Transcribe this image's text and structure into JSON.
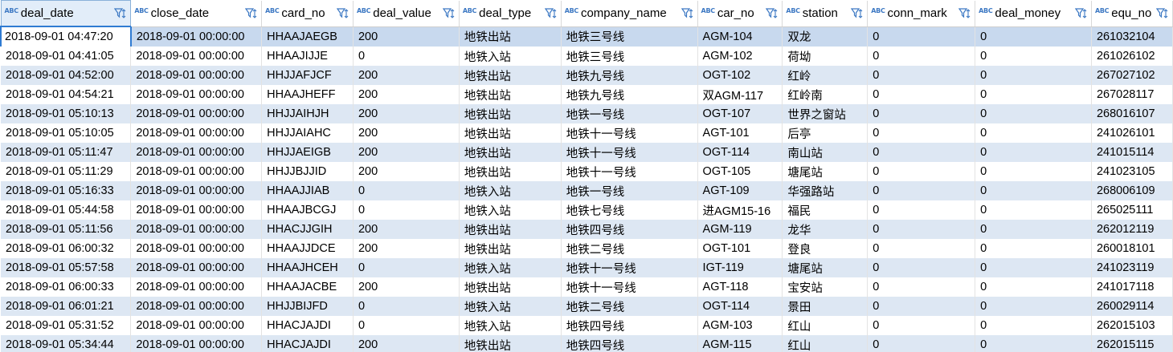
{
  "columns": [
    "deal_date",
    "close_date",
    "card_no",
    "deal_value",
    "deal_type",
    "company_name",
    "car_no",
    "station",
    "conn_mark",
    "deal_money",
    "equ_no"
  ],
  "type_badge": "ABC",
  "rows": [
    [
      "2018-09-01 04:47:20",
      "2018-09-01 00:00:00",
      "HHAAJAEGB",
      "200",
      "地铁出站",
      "地铁三号线",
      "AGM-104",
      "双龙",
      "0",
      "0",
      "261032104"
    ],
    [
      "2018-09-01 04:41:05",
      "2018-09-01 00:00:00",
      "HHAAJIJJE",
      "0",
      "地铁入站",
      "地铁三号线",
      "AGM-102",
      "荷坳",
      "0",
      "0",
      "261026102"
    ],
    [
      "2018-09-01 04:52:00",
      "2018-09-01 00:00:00",
      "HHJJAFJCF",
      "200",
      "地铁出站",
      "地铁九号线",
      "OGT-102",
      "红岭",
      "0",
      "0",
      "267027102"
    ],
    [
      "2018-09-01 04:54:21",
      "2018-09-01 00:00:00",
      "HHAAJHEFF",
      "200",
      "地铁出站",
      "地铁九号线",
      "双AGM-117",
      "红岭南",
      "0",
      "0",
      "267028117"
    ],
    [
      "2018-09-01 05:10:13",
      "2018-09-01 00:00:00",
      "HHJJAIHJH",
      "200",
      "地铁出站",
      "地铁一号线",
      "OGT-107",
      "世界之窗站",
      "0",
      "0",
      "268016107"
    ],
    [
      "2018-09-01 05:10:05",
      "2018-09-01 00:00:00",
      "HHJJAIAHC",
      "200",
      "地铁出站",
      "地铁十一号线",
      "AGT-101",
      "后亭",
      "0",
      "0",
      "241026101"
    ],
    [
      "2018-09-01 05:11:47",
      "2018-09-01 00:00:00",
      "HHJJAEIGB",
      "200",
      "地铁出站",
      "地铁十一号线",
      "OGT-114",
      "南山站",
      "0",
      "0",
      "241015114"
    ],
    [
      "2018-09-01 05:11:29",
      "2018-09-01 00:00:00",
      "HHJJBJJID",
      "200",
      "地铁出站",
      "地铁十一号线",
      "OGT-105",
      "塘尾站",
      "0",
      "0",
      "241023105"
    ],
    [
      "2018-09-01 05:16:33",
      "2018-09-01 00:00:00",
      "HHAAJJIAB",
      "0",
      "地铁入站",
      "地铁一号线",
      "AGT-109",
      "华强路站",
      "0",
      "0",
      "268006109"
    ],
    [
      "2018-09-01 05:44:58",
      "2018-09-01 00:00:00",
      "HHAAJBCGJ",
      "0",
      "地铁入站",
      "地铁七号线",
      "进AGM15-16",
      "福民",
      "0",
      "0",
      "265025111"
    ],
    [
      "2018-09-01 05:11:56",
      "2018-09-01 00:00:00",
      "HHACJJGIH",
      "200",
      "地铁出站",
      "地铁四号线",
      "AGM-119",
      "龙华",
      "0",
      "0",
      "262012119"
    ],
    [
      "2018-09-01 06:00:32",
      "2018-09-01 00:00:00",
      "HHAAJJDCE",
      "200",
      "地铁出站",
      "地铁二号线",
      "OGT-101",
      "登良",
      "0",
      "0",
      "260018101"
    ],
    [
      "2018-09-01 05:57:58",
      "2018-09-01 00:00:00",
      "HHAAJHCEH",
      "0",
      "地铁入站",
      "地铁十一号线",
      "IGT-119",
      "塘尾站",
      "0",
      "0",
      "241023119"
    ],
    [
      "2018-09-01 06:00:33",
      "2018-09-01 00:00:00",
      "HHAAJACBE",
      "200",
      "地铁出站",
      "地铁十一号线",
      "AGT-118",
      "宝安站",
      "0",
      "0",
      "241017118"
    ],
    [
      "2018-09-01 06:01:21",
      "2018-09-01 00:00:00",
      "HHJJBIJFD",
      "0",
      "地铁入站",
      "地铁二号线",
      "OGT-114",
      "景田",
      "0",
      "0",
      "260029114"
    ],
    [
      "2018-09-01 05:31:52",
      "2018-09-01 00:00:00",
      "HHACJAJDI",
      "0",
      "地铁入站",
      "地铁四号线",
      "AGM-103",
      "红山",
      "0",
      "0",
      "262015103"
    ],
    [
      "2018-09-01 05:34:44",
      "2018-09-01 00:00:00",
      "HHACJAJDI",
      "200",
      "地铁出站",
      "地铁四号线",
      "AGM-115",
      "红山",
      "0",
      "0",
      "262015115"
    ]
  ]
}
